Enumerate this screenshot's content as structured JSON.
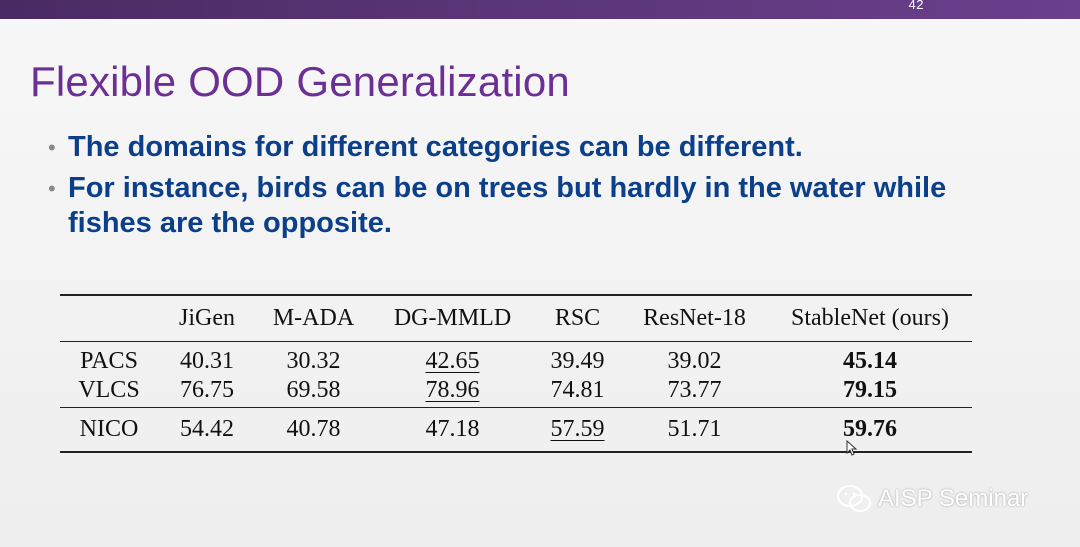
{
  "slide": {
    "number": "42",
    "title": "Flexible OOD Generalization",
    "bullets": [
      "The domains for different categories can be different.",
      "For instance, birds can be on trees but hardly in the water while fishes are the opposite."
    ],
    "bullet_symbol": "•"
  },
  "table": {
    "headers": [
      "",
      "JiGen",
      "M-ADA",
      "DG-MMLD",
      "RSC",
      "ResNet-18",
      "StableNet (ours)"
    ],
    "rows": [
      {
        "label": "PACS",
        "cells": [
          "40.31",
          "30.32",
          "42.65",
          "39.49",
          "39.02",
          "45.14"
        ],
        "underline_index": 2,
        "bold_index": 5
      },
      {
        "label": "VLCS",
        "cells": [
          "76.75",
          "69.58",
          "78.96",
          "74.81",
          "73.77",
          "79.15"
        ],
        "underline_index": 2,
        "bold_index": 5
      },
      {
        "label": "NICO",
        "cells": [
          "54.42",
          "40.78",
          "47.18",
          "57.59",
          "51.71",
          "59.76"
        ],
        "underline_index": 3,
        "bold_index": 5
      }
    ]
  },
  "watermark": {
    "text": "AISP Seminar",
    "icon": "wechat-icon"
  },
  "colors": {
    "title": "#6b2f95",
    "bullet_text": "#0b3f8a",
    "topbar": "#5a3577"
  }
}
